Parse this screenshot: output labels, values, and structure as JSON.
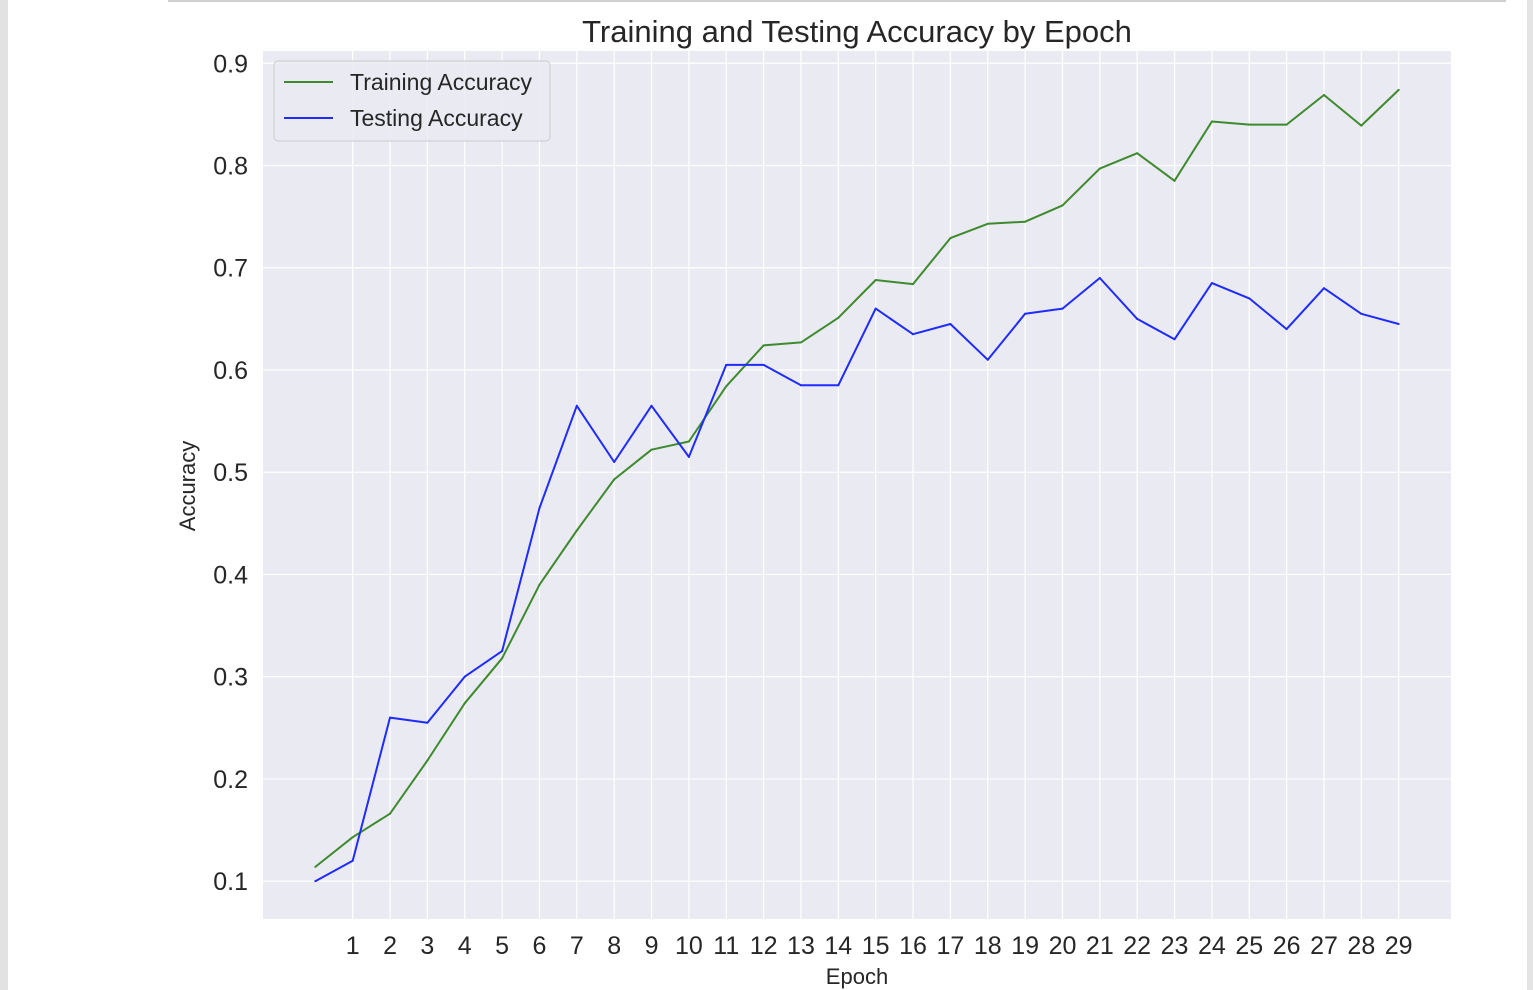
{
  "chart_data": {
    "type": "line",
    "title": "Training and Testing Accuracy by Epoch",
    "xlabel": "Epoch",
    "ylabel": "Accuracy",
    "xlim": [
      -1.4,
      30.4
    ],
    "ylim": [
      0.063,
      0.912
    ],
    "x": [
      0,
      1,
      2,
      3,
      4,
      5,
      6,
      7,
      8,
      9,
      10,
      11,
      12,
      13,
      14,
      15,
      16,
      17,
      18,
      19,
      20,
      21,
      22,
      23,
      24,
      25,
      26,
      27,
      28,
      29
    ],
    "xticks": [
      1,
      2,
      3,
      4,
      5,
      6,
      7,
      8,
      9,
      10,
      11,
      12,
      13,
      14,
      15,
      16,
      17,
      18,
      19,
      20,
      21,
      22,
      23,
      24,
      25,
      26,
      27,
      28,
      29
    ],
    "yticks": [
      0.1,
      0.2,
      0.3,
      0.4,
      0.5,
      0.6,
      0.7,
      0.8,
      0.9
    ],
    "grid": true,
    "legend_position": "top-left",
    "series": [
      {
        "name": "Training Accuracy",
        "color": "#3e8a2e",
        "values": [
          0.114,
          0.143,
          0.166,
          0.218,
          0.274,
          0.318,
          0.39,
          0.443,
          0.493,
          0.522,
          0.53,
          0.584,
          0.624,
          0.627,
          0.651,
          0.688,
          0.684,
          0.729,
          0.743,
          0.745,
          0.761,
          0.797,
          0.812,
          0.785,
          0.843,
          0.84,
          0.84,
          0.869,
          0.839,
          0.874
        ]
      },
      {
        "name": "Testing Accuracy",
        "color": "#1f2bff",
        "values": [
          0.1,
          0.12,
          0.26,
          0.255,
          0.3,
          0.325,
          0.465,
          0.565,
          0.51,
          0.565,
          0.515,
          0.605,
          0.605,
          0.585,
          0.585,
          0.66,
          0.635,
          0.645,
          0.61,
          0.655,
          0.66,
          0.69,
          0.65,
          0.63,
          0.685,
          0.67,
          0.64,
          0.68,
          0.655,
          0.645
        ]
      }
    ]
  }
}
